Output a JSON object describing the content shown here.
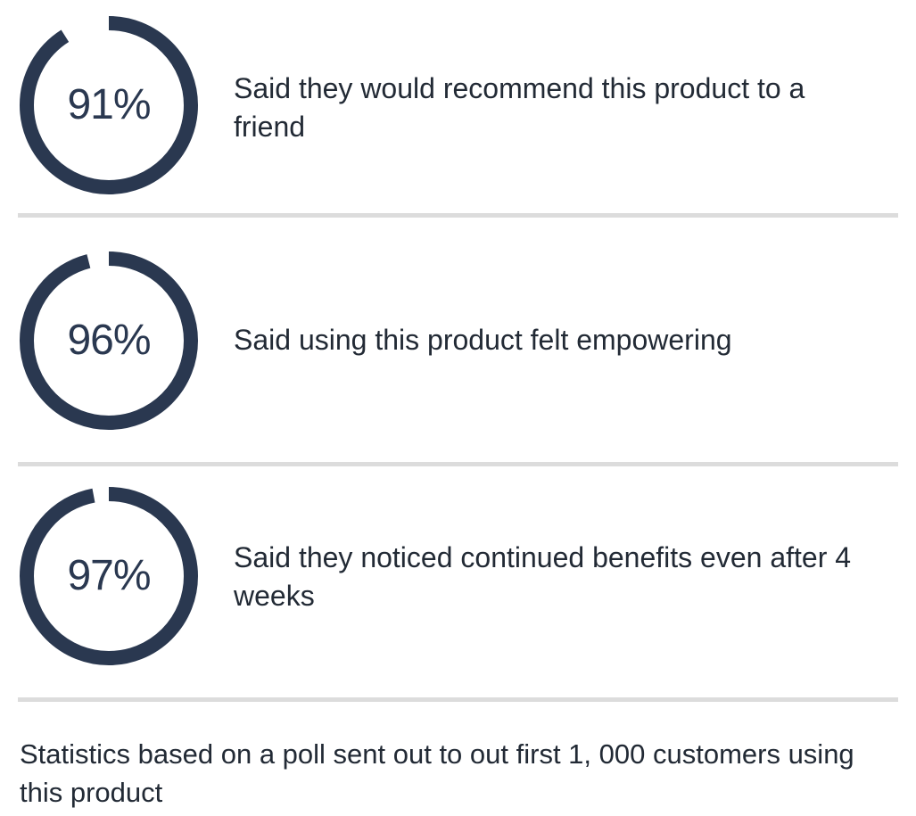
{
  "accent_color": "#2a3850",
  "divider_color": "#dcdcdc",
  "stats": [
    {
      "percent": 91,
      "value_label": "91%",
      "text": "Said they would recommend this product to a friend"
    },
    {
      "percent": 96,
      "value_label": "96%",
      "text": "Said using this product felt empowering"
    },
    {
      "percent": 97,
      "value_label": "97%",
      "text": "Said they noticed continued benefits even after 4 weeks"
    }
  ],
  "footnote": "Statistics based on a poll sent out to out first 1, 000 customers using this product"
}
